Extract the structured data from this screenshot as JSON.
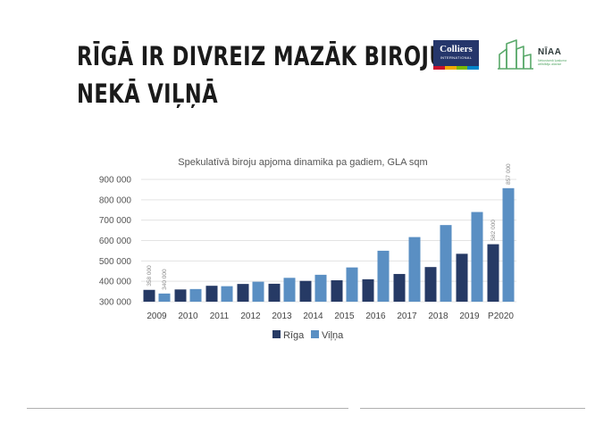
{
  "slide": {
    "title_line1": "RĪGĀ IR DIVREIZ MAZĀK BIROJU,",
    "title_line2": "NEKĀ VIĻŅĀ"
  },
  "logos": {
    "colliers": {
      "brand": "Colliers",
      "sub": "INTERNATIONAL"
    },
    "niaa": {
      "name": "NĪAA",
      "sub": "Nekustamā īpašuma attīstītāju alianse"
    }
  },
  "chart_data": {
    "type": "bar",
    "title": "Spekulatīvā biroju apjoma dinamika pa gadiem, GLA sqm",
    "categories": [
      "2009",
      "2010",
      "2011",
      "2012",
      "2013",
      "2014",
      "2015",
      "2016",
      "2017",
      "2018",
      "2019",
      "P2020"
    ],
    "series": [
      {
        "name": "Rīga",
        "color": "#263a65",
        "values": [
          358000,
          360000,
          378000,
          387000,
          388000,
          402000,
          405000,
          410000,
          436000,
          470000,
          535000,
          582000
        ]
      },
      {
        "name": "Viļņa",
        "color": "#5a8fc3",
        "values": [
          340000,
          362000,
          376000,
          398000,
          417000,
          432000,
          468000,
          550000,
          617000,
          676000,
          740000,
          857000
        ]
      }
    ],
    "value_labels": [
      {
        "series": 0,
        "index": 0,
        "text": "358 000"
      },
      {
        "series": 1,
        "index": 0,
        "text": "340 000"
      },
      {
        "series": 0,
        "index": 11,
        "text": "582 000"
      },
      {
        "series": 1,
        "index": 11,
        "text": "857 000"
      }
    ],
    "ylim": [
      300000,
      900000
    ],
    "yticks": [
      300000,
      400000,
      500000,
      600000,
      700000,
      800000,
      900000
    ],
    "ytick_labels": [
      "300 000",
      "400 000",
      "500 000",
      "600 000",
      "700 000",
      "800 000",
      "900 000"
    ],
    "grid": true,
    "legend": "bottom"
  }
}
